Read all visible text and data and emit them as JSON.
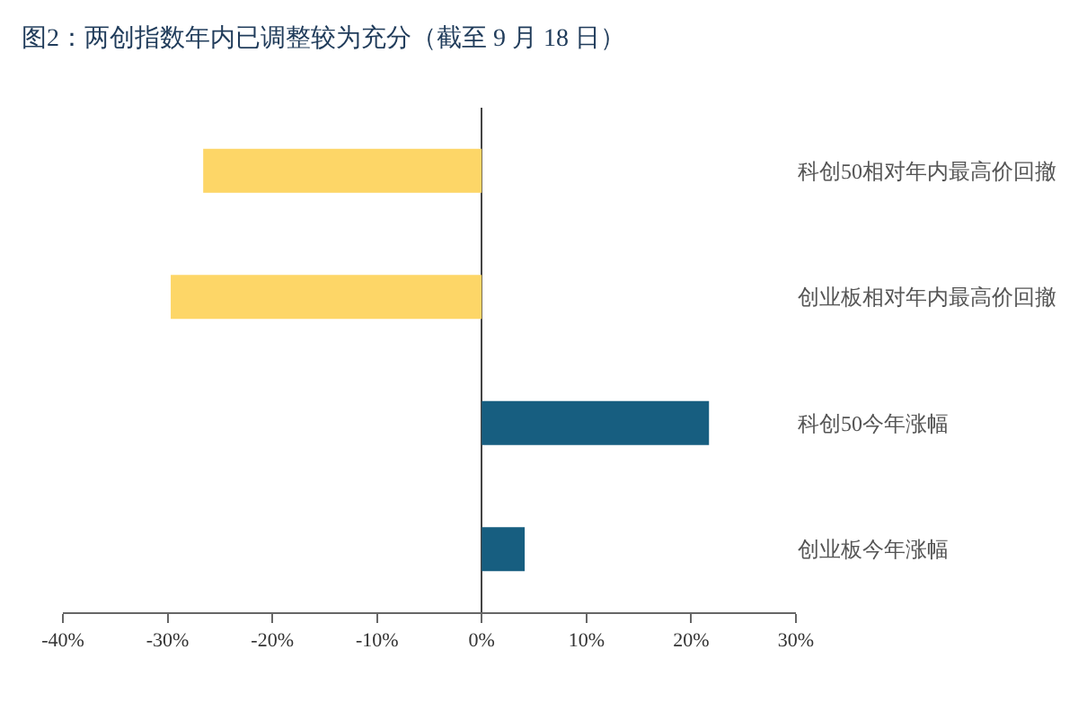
{
  "chart_data": {
    "type": "bar",
    "orientation": "horizontal",
    "title": "图2：两创指数年内已调整较为充分（截至 9 月 18 日）",
    "categories": [
      "科创50相对年内最高价回撤",
      "创业板相对年内最高价回撤",
      "科创50今年涨幅",
      "创业板今年涨幅"
    ],
    "values": [
      -26.6,
      -29.7,
      21.7,
      4.1
    ],
    "colors": [
      "#fdd667",
      "#fdd667",
      "#175e80",
      "#175e80"
    ],
    "xlim": [
      -40,
      30
    ],
    "xticks": [
      {
        "value": -40,
        "label": "-40%"
      },
      {
        "value": -30,
        "label": "-30%"
      },
      {
        "value": -20,
        "label": "-20%"
      },
      {
        "value": -10,
        "label": "-10%"
      },
      {
        "value": 0,
        "label": "0%"
      },
      {
        "value": 10,
        "label": "10%"
      },
      {
        "value": 20,
        "label": "20%"
      },
      {
        "value": 30,
        "label": "30%"
      }
    ],
    "tick_labels": "xy"
  }
}
